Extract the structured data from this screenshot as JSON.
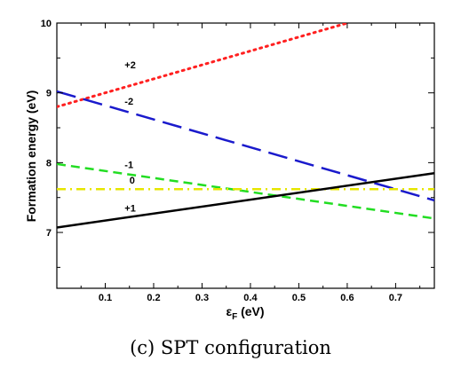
{
  "caption": "(c) SPT configuration",
  "chart_data": {
    "type": "line",
    "xlabel_symbol": "ε",
    "xlabel_sub": "F",
    "xlabel_unit": " (eV)",
    "ylabel": "Formation energy (eV)",
    "xlim": [
      0.0,
      0.78
    ],
    "ylim": [
      6.2,
      10.0
    ],
    "xticks": [
      0.1,
      0.2,
      0.3,
      0.4,
      0.5,
      0.6,
      0.7
    ],
    "yticks": [
      7,
      8,
      9,
      10
    ],
    "series": [
      {
        "name": "+2",
        "color": "#ff2020",
        "dash": "dotted",
        "x": [
          0.0,
          0.6
        ],
        "y": [
          8.8,
          10.0
        ]
      },
      {
        "name": "-2",
        "color": "#1a1acc",
        "dash": "long-dash",
        "x": [
          0.0,
          0.78
        ],
        "y": [
          9.02,
          7.46
        ]
      },
      {
        "name": "-1",
        "color": "#22dd22",
        "dash": "dash",
        "x": [
          0.0,
          0.78
        ],
        "y": [
          7.98,
          7.2
        ]
      },
      {
        "name": "0",
        "color": "#e6e600",
        "dash": "dash-dot",
        "x": [
          0.0,
          0.78
        ],
        "y": [
          7.62,
          7.62
        ]
      },
      {
        "name": "+1",
        "color": "#000000",
        "dash": "solid",
        "x": [
          0.0,
          0.78
        ],
        "y": [
          7.07,
          7.85
        ]
      }
    ]
  }
}
